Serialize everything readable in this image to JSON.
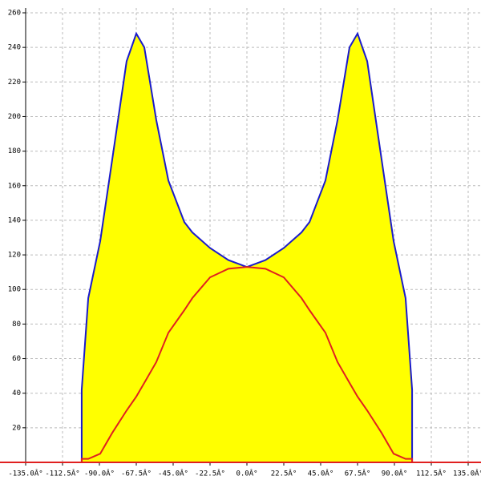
{
  "chart_data": {
    "type": "area",
    "x": [
      -100.8,
      -100.8,
      -96.8,
      -89.5,
      -82.2,
      -73.4,
      -67.5,
      -62.6,
      -55.3,
      -47.9,
      -38.2,
      -33.3,
      -22.5,
      -11.3,
      0,
      11.3,
      22.5,
      33.3,
      38.2,
      47.9,
      55.3,
      62.6,
      67.5,
      73.4,
      82.2,
      89.5,
      96.8,
      100.8,
      100.8
    ],
    "series": [
      {
        "color": "#1a1acc",
        "fill": "#ffff00",
        "values": [
          0,
          42,
          95,
          128,
          175,
          232,
          248,
          240,
          198,
          163,
          139,
          133,
          124,
          117,
          113,
          117,
          124,
          133,
          139,
          163,
          198,
          240,
          248,
          232,
          175,
          128,
          95,
          42,
          0
        ]
      },
      {
        "color": "#e02020",
        "values": [
          0,
          2,
          2,
          5,
          17,
          30,
          38,
          46,
          58,
          75,
          88,
          95,
          107,
          112,
          113,
          112,
          107,
          95,
          88,
          75,
          58,
          46,
          38,
          30,
          17,
          5,
          2,
          2,
          0
        ]
      }
    ],
    "xlim": [
      -135,
      135
    ],
    "xticks": [
      {
        "value": -135,
        "label": "-135.0Â°"
      },
      {
        "value": -112.5,
        "label": "-112.5Â°"
      },
      {
        "value": -90,
        "label": "-90.0Â°"
      },
      {
        "value": -67.5,
        "label": "-67.5Â°"
      },
      {
        "value": -45,
        "label": "-45.0Â°"
      },
      {
        "value": -22.5,
        "label": "-22.5Â°"
      },
      {
        "value": 0,
        "label": "0.0Â°"
      },
      {
        "value": 22.5,
        "label": "22.5Â°"
      },
      {
        "value": 45,
        "label": "45.0Â°"
      },
      {
        "value": 67.5,
        "label": "67.5Â°"
      },
      {
        "value": 90,
        "label": "90.0Â°"
      },
      {
        "value": 112.5,
        "label": "112.5Â°"
      },
      {
        "value": 135,
        "label": "135.0Â°"
      }
    ],
    "ylim": [
      0,
      260
    ],
    "yticks": [
      20,
      40,
      60,
      80,
      100,
      120,
      140,
      160,
      180,
      200,
      220,
      240,
      260
    ],
    "grid": true
  }
}
